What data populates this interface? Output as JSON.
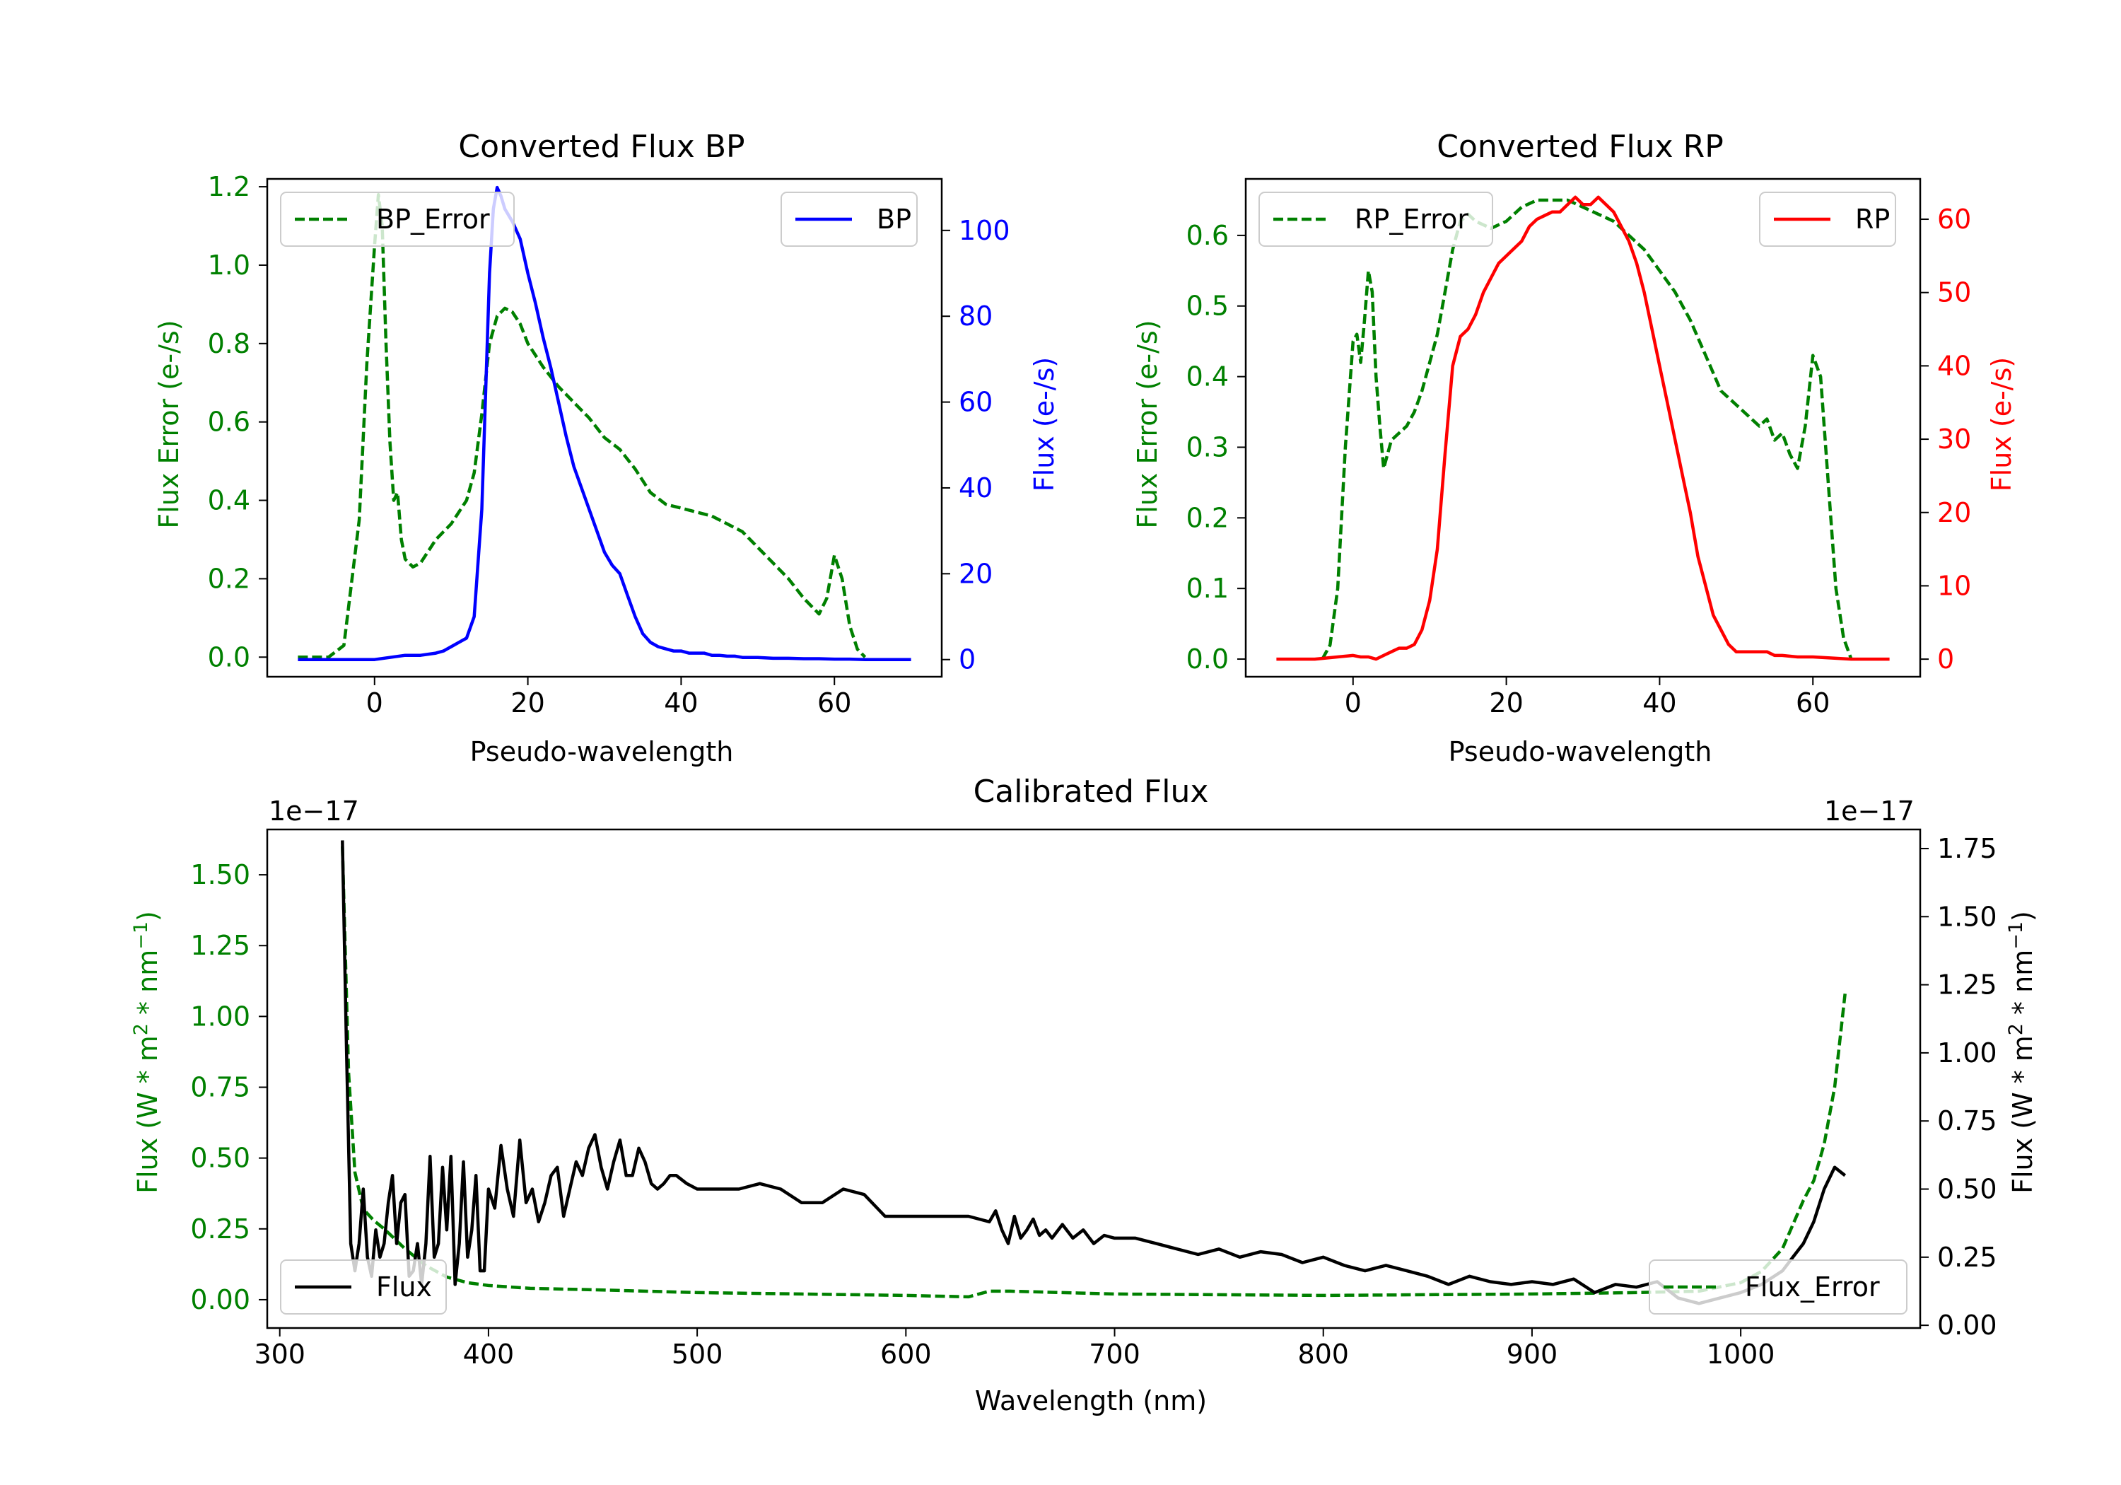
{
  "colors": {
    "green": "#008000",
    "blue": "#0000ff",
    "red": "#ff0000",
    "black": "#000000"
  },
  "chart_data": [
    {
      "id": "bp",
      "type": "line",
      "title": "Converted Flux BP",
      "xlabel": "Pseudo-wavelength",
      "ylabel_left": "Flux Error (e-/s)",
      "ylabel_right": "Flux (e-/s)",
      "xlim": [
        -14,
        74
      ],
      "ylim_left": [
        -0.05,
        1.22
      ],
      "ylim_right": [
        -4,
        112
      ],
      "xticks": [
        0,
        20,
        40,
        60
      ],
      "yticks_left": [
        0.0,
        0.2,
        0.4,
        0.6,
        0.8,
        1.0,
        1.2
      ],
      "yticks_right": [
        0,
        20,
        40,
        60,
        80,
        100
      ],
      "series": [
        {
          "name": "BP_Error",
          "axis": "left",
          "color": "green",
          "style": "dashed",
          "legend": "top-left",
          "x": [
            -10,
            -6,
            -4,
            -2,
            -1,
            0,
            0.5,
            1,
            1.5,
            2,
            2.5,
            3,
            3.5,
            4,
            5,
            6,
            7,
            8,
            10,
            12,
            13,
            14,
            15,
            16,
            17,
            18,
            19,
            20,
            22,
            24,
            26,
            28,
            30,
            32,
            34,
            36,
            38,
            40,
            42,
            44,
            46,
            48,
            50,
            52,
            54,
            56,
            58,
            59,
            60,
            61,
            62,
            63,
            64
          ],
          "y": [
            0,
            0,
            0.03,
            0.35,
            0.75,
            1.05,
            1.18,
            1.1,
            0.8,
            0.55,
            0.4,
            0.42,
            0.3,
            0.25,
            0.23,
            0.24,
            0.27,
            0.3,
            0.34,
            0.4,
            0.47,
            0.62,
            0.8,
            0.87,
            0.89,
            0.88,
            0.85,
            0.8,
            0.74,
            0.69,
            0.65,
            0.61,
            0.56,
            0.53,
            0.48,
            0.42,
            0.39,
            0.38,
            0.37,
            0.36,
            0.34,
            0.32,
            0.28,
            0.24,
            0.2,
            0.15,
            0.11,
            0.15,
            0.26,
            0.2,
            0.08,
            0.02,
            0
          ]
        },
        {
          "name": "BP",
          "axis": "right",
          "color": "blue",
          "style": "solid",
          "legend": "top-right",
          "x": [
            -10,
            -5,
            0,
            2,
            4,
            6,
            8,
            9,
            10,
            11,
            12,
            13,
            14,
            15,
            15.5,
            16,
            16.5,
            17,
            18,
            19,
            20,
            21,
            22,
            23,
            24,
            25,
            26,
            27,
            28,
            29,
            30,
            31,
            32,
            33,
            34,
            35,
            36,
            37,
            38,
            39,
            40,
            41,
            42,
            43,
            44,
            45,
            46,
            47,
            48,
            49,
            50,
            52,
            54,
            56,
            58,
            60,
            62,
            64,
            66,
            70
          ],
          "y": [
            0,
            0,
            0,
            0.5,
            1,
            1,
            1.5,
            2,
            3,
            4,
            5,
            10,
            35,
            90,
            105,
            110,
            108,
            105,
            102,
            98,
            90,
            83,
            75,
            68,
            60,
            52,
            45,
            40,
            35,
            30,
            25,
            22,
            20,
            15,
            10,
            6,
            4,
            3,
            2.5,
            2,
            2,
            1.5,
            1.5,
            1.5,
            1,
            1,
            0.8,
            0.8,
            0.5,
            0.5,
            0.5,
            0.3,
            0.3,
            0.2,
            0.2,
            0.1,
            0.1,
            0,
            0,
            0
          ]
        }
      ]
    },
    {
      "id": "rp",
      "type": "line",
      "title": "Converted Flux RP",
      "xlabel": "Pseudo-wavelength",
      "ylabel_left": "Flux Error (e-/s)",
      "ylabel_right": "Flux (e-/s)",
      "xlim": [
        -14,
        74
      ],
      "ylim_left": [
        -0.025,
        0.68
      ],
      "ylim_right": [
        -2.4,
        65.5
      ],
      "xticks": [
        0,
        20,
        40,
        60
      ],
      "yticks_left": [
        0.0,
        0.1,
        0.2,
        0.3,
        0.4,
        0.5,
        0.6
      ],
      "yticks_right": [
        0,
        10,
        20,
        30,
        40,
        50,
        60
      ],
      "series": [
        {
          "name": "RP_Error",
          "axis": "left",
          "color": "green",
          "style": "dashed",
          "legend": "top-left",
          "x": [
            -4,
            -3,
            -2,
            -1,
            0,
            0.5,
            1,
            1.5,
            2,
            2.5,
            3,
            3.5,
            4,
            5,
            6,
            7,
            8,
            9,
            10,
            11,
            12,
            13,
            14,
            15,
            16,
            18,
            20,
            22,
            24,
            26,
            28,
            30,
            32,
            34,
            36,
            38,
            40,
            42,
            44,
            46,
            48,
            50,
            52,
            53,
            54,
            55,
            56,
            57,
            58,
            59,
            60,
            61,
            62,
            63,
            64,
            65
          ],
          "y": [
            0,
            0.02,
            0.1,
            0.3,
            0.45,
            0.46,
            0.42,
            0.48,
            0.55,
            0.52,
            0.4,
            0.33,
            0.27,
            0.31,
            0.32,
            0.33,
            0.35,
            0.38,
            0.42,
            0.46,
            0.52,
            0.58,
            0.62,
            0.63,
            0.62,
            0.61,
            0.62,
            0.64,
            0.65,
            0.65,
            0.65,
            0.64,
            0.63,
            0.62,
            0.6,
            0.58,
            0.55,
            0.52,
            0.48,
            0.43,
            0.38,
            0.36,
            0.34,
            0.33,
            0.34,
            0.31,
            0.32,
            0.29,
            0.27,
            0.33,
            0.43,
            0.4,
            0.25,
            0.1,
            0.03,
            0
          ]
        },
        {
          "name": "RP",
          "axis": "right",
          "color": "red",
          "style": "solid",
          "legend": "top-right",
          "x": [
            -10,
            -5,
            0,
            1,
            2,
            3,
            4,
            5,
            6,
            7,
            8,
            9,
            10,
            11,
            12,
            13,
            14,
            15,
            16,
            17,
            18,
            19,
            20,
            21,
            22,
            23,
            24,
            25,
            26,
            27,
            28,
            29,
            30,
            31,
            32,
            33,
            34,
            35,
            36,
            37,
            38,
            39,
            40,
            41,
            42,
            43,
            44,
            45,
            46,
            47,
            48,
            49,
            50,
            51,
            52,
            53,
            54,
            55,
            56,
            58,
            60,
            65,
            70
          ],
          "y": [
            0,
            0,
            0.5,
            0.3,
            0.3,
            0,
            0.5,
            1,
            1.5,
            1.5,
            2,
            4,
            8,
            15,
            28,
            40,
            44,
            45,
            47,
            50,
            52,
            54,
            55,
            56,
            57,
            59,
            60,
            60.5,
            61,
            61,
            62,
            63,
            62,
            62,
            63,
            62,
            61,
            59,
            57,
            54,
            50,
            45,
            40,
            35,
            30,
            25,
            20,
            14,
            10,
            6,
            4,
            2,
            1,
            1,
            1,
            1,
            1,
            0.5,
            0.5,
            0.3,
            0.3,
            0,
            0
          ]
        }
      ]
    },
    {
      "id": "cal",
      "type": "line",
      "title": "Calibrated Flux",
      "xlabel": "Wavelength (nm)",
      "ylabel_left": "Flux (W * m",
      "ylabel_right": "Flux (W * m",
      "ylabel_sup1": "2",
      "ylabel_mid": " * nm",
      "ylabel_sup2": "−1",
      "ylabel_tail": ")",
      "offset_left": "1e−17",
      "offset_right": "1e−17",
      "xlim": [
        294,
        1086
      ],
      "ylim_left": [
        -0.1,
        1.66
      ],
      "ylim_right": [
        -0.01,
        1.82
      ],
      "xticks": [
        300,
        400,
        500,
        600,
        700,
        800,
        900,
        1000
      ],
      "yticks_left": [
        "0.00",
        "0.25",
        "0.50",
        "0.75",
        "1.00",
        "1.25",
        "1.50"
      ],
      "yticks_right": [
        "0.00",
        "0.25",
        "0.50",
        "0.75",
        "1.00",
        "1.25",
        "1.50",
        "1.75"
      ],
      "series": [
        {
          "name": "Flux_Error",
          "axis": "left",
          "color": "green",
          "style": "dashed",
          "legend": "bottom-right",
          "x": [
            330,
            333,
            336,
            340,
            345,
            350,
            360,
            370,
            380,
            390,
            400,
            420,
            450,
            500,
            550,
            600,
            630,
            640,
            650,
            700,
            800,
            900,
            950,
            980,
            1000,
            1010,
            1020,
            1030,
            1035,
            1040,
            1045,
            1050
          ],
          "y": [
            1.6,
            0.8,
            0.45,
            0.32,
            0.28,
            0.25,
            0.18,
            0.12,
            0.08,
            0.06,
            0.05,
            0.04,
            0.035,
            0.025,
            0.02,
            0.015,
            0.01,
            0.03,
            0.03,
            0.02,
            0.015,
            0.02,
            0.025,
            0.03,
            0.06,
            0.1,
            0.18,
            0.35,
            0.42,
            0.55,
            0.75,
            1.08
          ]
        },
        {
          "name": "Flux",
          "axis": "right",
          "color": "black",
          "style": "solid",
          "legend": "bottom-left",
          "x": [
            330,
            332,
            334,
            336,
            338,
            340,
            342,
            344,
            346,
            348,
            350,
            352,
            354,
            356,
            358,
            360,
            362,
            364,
            366,
            368,
            370,
            372,
            374,
            376,
            378,
            380,
            382,
            384,
            386,
            388,
            390,
            392,
            394,
            396,
            398,
            400,
            403,
            406,
            409,
            412,
            415,
            418,
            421,
            424,
            427,
            430,
            433,
            436,
            439,
            442,
            445,
            448,
            451,
            454,
            457,
            460,
            463,
            466,
            469,
            472,
            475,
            478,
            481,
            484,
            487,
            490,
            495,
            500,
            510,
            520,
            530,
            540,
            550,
            560,
            570,
            580,
            590,
            600,
            610,
            620,
            630,
            640,
            643,
            646,
            649,
            652,
            655,
            658,
            661,
            664,
            667,
            670,
            675,
            680,
            685,
            690,
            695,
            700,
            710,
            720,
            730,
            740,
            750,
            760,
            770,
            780,
            790,
            800,
            810,
            820,
            830,
            840,
            850,
            860,
            870,
            880,
            890,
            900,
            910,
            920,
            930,
            940,
            950,
            960,
            970,
            980,
            990,
            1000,
            1010,
            1020,
            1025,
            1030,
            1035,
            1040,
            1045,
            1050
          ],
          "y": [
            1.78,
            1.0,
            0.3,
            0.2,
            0.3,
            0.5,
            0.25,
            0.18,
            0.35,
            0.25,
            0.3,
            0.45,
            0.55,
            0.3,
            0.45,
            0.48,
            0.18,
            0.2,
            0.3,
            0.15,
            0.3,
            0.62,
            0.25,
            0.3,
            0.58,
            0.35,
            0.62,
            0.15,
            0.3,
            0.6,
            0.25,
            0.35,
            0.55,
            0.2,
            0.2,
            0.5,
            0.43,
            0.66,
            0.5,
            0.4,
            0.68,
            0.45,
            0.5,
            0.38,
            0.45,
            0.55,
            0.58,
            0.4,
            0.5,
            0.6,
            0.55,
            0.65,
            0.7,
            0.58,
            0.5,
            0.6,
            0.68,
            0.55,
            0.55,
            0.65,
            0.6,
            0.52,
            0.5,
            0.52,
            0.55,
            0.55,
            0.52,
            0.5,
            0.5,
            0.5,
            0.52,
            0.5,
            0.45,
            0.45,
            0.5,
            0.48,
            0.4,
            0.4,
            0.4,
            0.4,
            0.4,
            0.38,
            0.42,
            0.35,
            0.3,
            0.4,
            0.32,
            0.35,
            0.39,
            0.33,
            0.35,
            0.32,
            0.37,
            0.32,
            0.35,
            0.3,
            0.33,
            0.32,
            0.32,
            0.3,
            0.28,
            0.26,
            0.28,
            0.25,
            0.27,
            0.26,
            0.23,
            0.25,
            0.22,
            0.2,
            0.22,
            0.2,
            0.18,
            0.15,
            0.18,
            0.16,
            0.15,
            0.16,
            0.15,
            0.17,
            0.12,
            0.15,
            0.14,
            0.16,
            0.1,
            0.08,
            0.1,
            0.12,
            0.15,
            0.2,
            0.25,
            0.3,
            0.38,
            0.5,
            0.58,
            0.55
          ]
        }
      ]
    }
  ]
}
